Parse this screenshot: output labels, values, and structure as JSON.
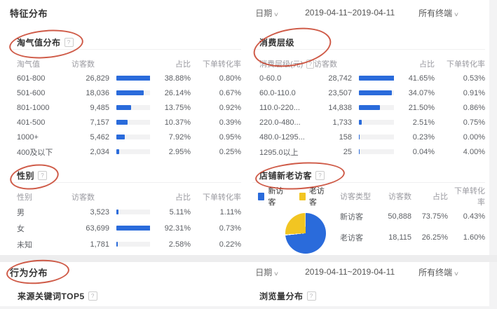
{
  "colors": {
    "blue": "#2a6bdb",
    "yellow": "#f2c522",
    "annotation": "#c73e28"
  },
  "feature": {
    "title": "特征分布"
  },
  "behavior": {
    "title": "行为分布",
    "panels": [
      {
        "label": "来源关键词TOP5"
      },
      {
        "label": "浏览量分布"
      }
    ]
  },
  "filters": {
    "date_label": "日期",
    "date_range": "2019-04-11~2019-04-11",
    "terminal": "所有终端"
  },
  "help_glyph": "?",
  "panels": {
    "taoqi": {
      "title": "淘气值分布",
      "has_help": true,
      "col1_help": false,
      "columns": [
        "淘气值",
        "访客数",
        "占比",
        "下单转化率"
      ],
      "rows": [
        {
          "label": "601-800",
          "visitors": "26,829",
          "pct": "38.88%",
          "pv": 38.88,
          "conv": "0.80%"
        },
        {
          "label": "501-600",
          "visitors": "18,036",
          "pct": "26.14%",
          "pv": 26.14,
          "conv": "0.67%"
        },
        {
          "label": "801-1000",
          "visitors": "9,485",
          "pct": "13.75%",
          "pv": 13.75,
          "conv": "0.92%"
        },
        {
          "label": "401-500",
          "visitors": "7,157",
          "pct": "10.37%",
          "pv": 10.37,
          "conv": "0.39%"
        },
        {
          "label": "1000+",
          "visitors": "5,462",
          "pct": "7.92%",
          "pv": 7.92,
          "conv": "0.95%"
        },
        {
          "label": "400及以下",
          "visitors": "2,034",
          "pct": "2.95%",
          "pv": 2.95,
          "conv": "0.25%"
        }
      ]
    },
    "consume": {
      "title": "消费层级",
      "has_help": false,
      "col1_help": true,
      "columns": [
        "消费层级(元)",
        "访客数",
        "占比",
        "下单转化率"
      ],
      "rows": [
        {
          "label": "0-60.0",
          "visitors": "28,742",
          "pct": "41.65%",
          "pv": 41.65,
          "conv": "0.53%"
        },
        {
          "label": "60.0-110.0",
          "visitors": "23,507",
          "pct": "34.07%",
          "pv": 34.07,
          "conv": "0.91%"
        },
        {
          "label": "110.0-220...",
          "visitors": "14,838",
          "pct": "21.50%",
          "pv": 21.5,
          "conv": "0.86%"
        },
        {
          "label": "220.0-480...",
          "visitors": "1,733",
          "pct": "2.51%",
          "pv": 2.51,
          "conv": "0.75%"
        },
        {
          "label": "480.0-1295...",
          "visitors": "158",
          "pct": "0.23%",
          "pv": 0.23,
          "conv": "0.00%"
        },
        {
          "label": "1295.0以上",
          "visitors": "25",
          "pct": "0.04%",
          "pv": 0.04,
          "conv": "4.00%"
        }
      ]
    },
    "gender": {
      "title": "性别",
      "has_help": true,
      "col1_help": false,
      "columns": [
        "性别",
        "访客数",
        "占比",
        "下单转化率"
      ],
      "rows": [
        {
          "label": "男",
          "visitors": "3,523",
          "pct": "5.11%",
          "pv": 5.11,
          "conv": "1.11%"
        },
        {
          "label": "女",
          "visitors": "63,699",
          "pct": "92.31%",
          "pv": 92.31,
          "conv": "0.73%"
        },
        {
          "label": "未知",
          "visitors": "1,781",
          "pct": "2.58%",
          "pv": 2.58,
          "conv": "0.22%"
        }
      ]
    },
    "visitors": {
      "title": "店铺新老访客",
      "has_help": true,
      "legend": [
        {
          "label": "新访客",
          "color": "#2a6bdb"
        },
        {
          "label": "老访客",
          "color": "#f2c522"
        }
      ],
      "columns": [
        "访客类型",
        "访客数",
        "占比",
        "下单转化率"
      ],
      "rows": [
        {
          "label": "新访客",
          "visitors": "50,888",
          "pct": "73.75%",
          "conv": "0.43%"
        },
        {
          "label": "老访客",
          "visitors": "18,115",
          "pct": "26.25%",
          "conv": "1.60%"
        }
      ],
      "pie": {
        "values": [
          73.75,
          26.25
        ]
      }
    }
  },
  "chart_data": [
    {
      "type": "bar",
      "title": "淘气值分布",
      "categories": [
        "601-800",
        "501-600",
        "801-1000",
        "401-500",
        "1000+",
        "400及以下"
      ],
      "series": [
        {
          "name": "访客数",
          "values": [
            26829,
            18036,
            9485,
            7157,
            5462,
            2034
          ]
        },
        {
          "name": "占比(%)",
          "values": [
            38.88,
            26.14,
            13.75,
            10.37,
            7.92,
            2.95
          ]
        },
        {
          "name": "下单转化率(%)",
          "values": [
            0.8,
            0.67,
            0.92,
            0.39,
            0.95,
            0.25
          ]
        }
      ],
      "legend_position": "none",
      "grid": false
    },
    {
      "type": "bar",
      "title": "消费层级",
      "categories": [
        "0-60.0",
        "60.0-110.0",
        "110.0-220...",
        "220.0-480...",
        "480.0-1295...",
        "1295.0以上"
      ],
      "series": [
        {
          "name": "访客数",
          "values": [
            28742,
            23507,
            14838,
            1733,
            158,
            25
          ]
        },
        {
          "name": "占比(%)",
          "values": [
            41.65,
            34.07,
            21.5,
            2.51,
            0.23,
            0.04
          ]
        },
        {
          "name": "下单转化率(%)",
          "values": [
            0.53,
            0.91,
            0.86,
            0.75,
            0.0,
            4.0
          ]
        }
      ],
      "legend_position": "none",
      "grid": false
    },
    {
      "type": "bar",
      "title": "性别",
      "categories": [
        "男",
        "女",
        "未知"
      ],
      "series": [
        {
          "name": "访客数",
          "values": [
            3523,
            63699,
            1781
          ]
        },
        {
          "name": "占比(%)",
          "values": [
            5.11,
            92.31,
            2.58
          ]
        },
        {
          "name": "下单转化率(%)",
          "values": [
            1.11,
            0.73,
            0.22
          ]
        }
      ],
      "legend_position": "none",
      "grid": false
    },
    {
      "type": "pie",
      "title": "店铺新老访客",
      "categories": [
        "新访客",
        "老访客"
      ],
      "values": [
        73.75,
        26.25
      ],
      "colors": [
        "#2a6bdb",
        "#f2c522"
      ],
      "legend_position": "top-left"
    }
  ]
}
